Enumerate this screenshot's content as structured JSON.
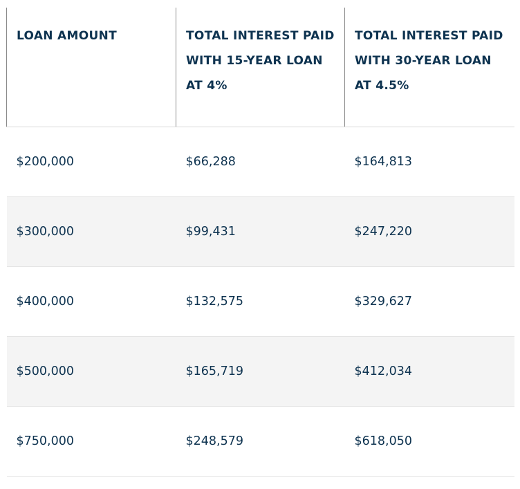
{
  "table": {
    "headers": [
      "LOAN AMOUNT",
      "TOTAL INTEREST PAID WITH 15-YEAR LOAN AT 4%",
      "TOTAL INTEREST PAID WITH 30-YEAR LOAN AT 4.5%"
    ],
    "rows": [
      [
        "$200,000",
        "$66,288",
        "$164,813"
      ],
      [
        "$300,000",
        "$99,431",
        "$247,220"
      ],
      [
        "$400,000",
        "$132,575",
        "$329,627"
      ],
      [
        "$500,000",
        "$165,719",
        "$412,034"
      ],
      [
        "$750,000",
        "$248,579",
        "$618,050"
      ]
    ]
  },
  "colors": {
    "text": "#0e3350",
    "row_shade": "#f4f4f4",
    "divider": "#8a8a8a"
  }
}
